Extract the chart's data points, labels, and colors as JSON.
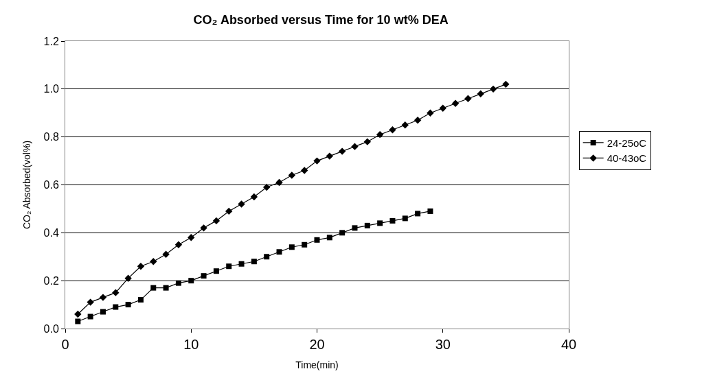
{
  "chart_data": {
    "type": "line",
    "title": "CO₂ Absorbed versus Time for 10 wt% DEA",
    "xlabel": "Time(min)",
    "ylabel": "CO₂ Absorbed(vol%)",
    "series": [
      {
        "name": "24-25oC",
        "color": "#000000",
        "marker": "square",
        "x": [
          1,
          2,
          3,
          4,
          5,
          6,
          7,
          8,
          9,
          10,
          11,
          12,
          13,
          14,
          15,
          16,
          17,
          18,
          19,
          20,
          21,
          22,
          23,
          24,
          25,
          26,
          27,
          28,
          29
        ],
        "values": [
          0.03,
          0.05,
          0.07,
          0.09,
          0.1,
          0.12,
          0.17,
          0.17,
          0.19,
          0.2,
          0.22,
          0.24,
          0.26,
          0.27,
          0.28,
          0.3,
          0.32,
          0.34,
          0.35,
          0.37,
          0.38,
          0.4,
          0.42,
          0.43,
          0.44,
          0.45,
          0.46,
          0.48,
          0.49
        ]
      },
      {
        "name": "40-43oC",
        "color": "#000000",
        "marker": "diamond",
        "x": [
          1,
          2,
          3,
          4,
          5,
          6,
          7,
          8,
          9,
          10,
          11,
          12,
          13,
          14,
          15,
          16,
          17,
          18,
          19,
          20,
          21,
          22,
          23,
          24,
          25,
          26,
          27,
          28,
          29,
          30,
          31,
          32,
          33,
          34,
          35
        ],
        "values": [
          0.06,
          0.11,
          0.13,
          0.15,
          0.21,
          0.26,
          0.28,
          0.31,
          0.35,
          0.38,
          0.42,
          0.45,
          0.49,
          0.52,
          0.55,
          0.59,
          0.61,
          0.64,
          0.66,
          0.7,
          0.72,
          0.74,
          0.76,
          0.78,
          0.81,
          0.83,
          0.85,
          0.87,
          0.9,
          0.92,
          0.94,
          0.96,
          0.98,
          1.0,
          1.02
        ]
      }
    ],
    "xlim": [
      0,
      40
    ],
    "xticks": [
      0,
      10,
      20,
      30,
      40
    ],
    "ylim": [
      0,
      1.2
    ],
    "yticks": [
      {
        "value": 0,
        "label": "0.0"
      },
      {
        "value": 0.2,
        "label": "0.2"
      },
      {
        "value": 0.4,
        "label": "0.4"
      },
      {
        "value": 0.6,
        "label": "0.6"
      },
      {
        "value": 0.8,
        "label": "0.8"
      },
      {
        "value": 1.0,
        "label": "1.0"
      },
      {
        "value": 1.2,
        "label": "1.2"
      }
    ],
    "grid": "y",
    "legend": "right",
    "line_style": "solid"
  }
}
